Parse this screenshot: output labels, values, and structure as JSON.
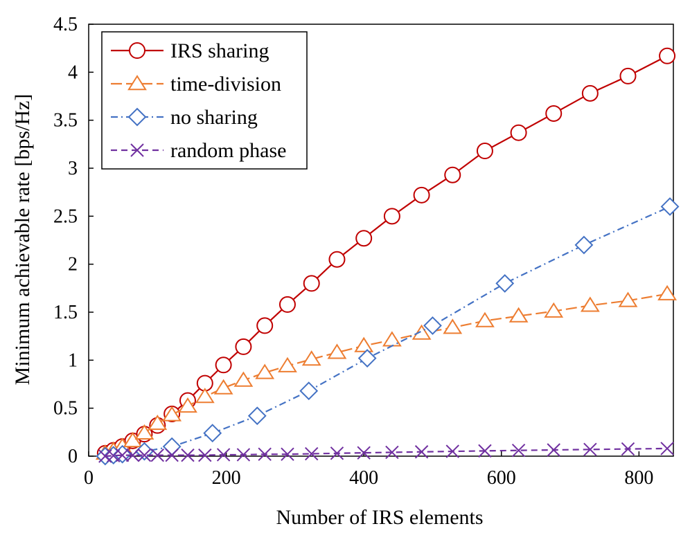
{
  "chart_data": {
    "type": "line",
    "title": "",
    "xlabel": "Number of IRS elements",
    "ylabel": "Minimum achievable rate [bps/Hz]",
    "xlim": [
      0,
      850
    ],
    "ylim": [
      0,
      4.5
    ],
    "xticks": [
      "0",
      "200",
      "400",
      "600",
      "800"
    ],
    "xtick_values": [
      0,
      200,
      400,
      600,
      800
    ],
    "yticks": [
      "0",
      "0.5",
      "1",
      "1.5",
      "2",
      "2.5",
      "3",
      "3.5",
      "4",
      "4.5"
    ],
    "ytick_values": [
      0,
      0.5,
      1,
      1.5,
      2,
      2.5,
      3,
      3.5,
      4,
      4.5
    ],
    "grid": false,
    "legend_position": "top-left",
    "series": [
      {
        "name": "IRS sharing",
        "color": "#c00000",
        "marker": "circle",
        "dash": "solid",
        "x": [
          24,
          36,
          49,
          64,
          81,
          100,
          121,
          144,
          169,
          196,
          225,
          256,
          289,
          324,
          361,
          400,
          441,
          484,
          529,
          576,
          625,
          676,
          729,
          784,
          841
        ],
        "y": [
          0.03,
          0.06,
          0.1,
          0.16,
          0.23,
          0.32,
          0.44,
          0.58,
          0.76,
          0.95,
          1.14,
          1.36,
          1.58,
          1.8,
          2.05,
          2.27,
          2.5,
          2.72,
          2.93,
          3.18,
          3.37,
          3.57,
          3.78,
          3.96,
          4.17
        ]
      },
      {
        "name": "time-division",
        "color": "#ed7d31",
        "marker": "triangle",
        "dash": "longdash",
        "x": [
          24,
          36,
          49,
          64,
          81,
          100,
          121,
          144,
          169,
          196,
          225,
          256,
          289,
          324,
          361,
          400,
          441,
          484,
          529,
          576,
          625,
          676,
          729,
          784,
          841
        ],
        "y": [
          0.03,
          0.06,
          0.1,
          0.16,
          0.24,
          0.34,
          0.43,
          0.52,
          0.62,
          0.71,
          0.79,
          0.87,
          0.94,
          1.01,
          1.08,
          1.15,
          1.21,
          1.28,
          1.34,
          1.41,
          1.46,
          1.51,
          1.57,
          1.62,
          1.69
        ]
      },
      {
        "name": "no sharing",
        "color": "#4472c4",
        "marker": "diamond",
        "dash": "dashdot",
        "x": [
          24,
          36,
          49,
          81,
          121,
          180,
          245,
          320,
          405,
          500,
          605,
          720,
          845
        ],
        "y": [
          0.0,
          0.01,
          0.02,
          0.05,
          0.1,
          0.24,
          0.42,
          0.68,
          1.02,
          1.36,
          1.8,
          2.2,
          2.6
        ]
      },
      {
        "name": "random phase",
        "color": "#7030a0",
        "marker": "x",
        "dash": "dash",
        "x": [
          24,
          36,
          49,
          64,
          81,
          100,
          121,
          144,
          169,
          196,
          225,
          256,
          289,
          324,
          361,
          400,
          441,
          484,
          529,
          576,
          625,
          676,
          729,
          784,
          841
        ],
        "y": [
          0.0,
          0.005,
          0.01,
          0.01,
          0.01,
          0.01,
          0.01,
          0.01,
          0.01,
          0.015,
          0.015,
          0.02,
          0.02,
          0.025,
          0.03,
          0.035,
          0.04,
          0.045,
          0.05,
          0.055,
          0.06,
          0.065,
          0.07,
          0.075,
          0.08
        ]
      }
    ]
  }
}
